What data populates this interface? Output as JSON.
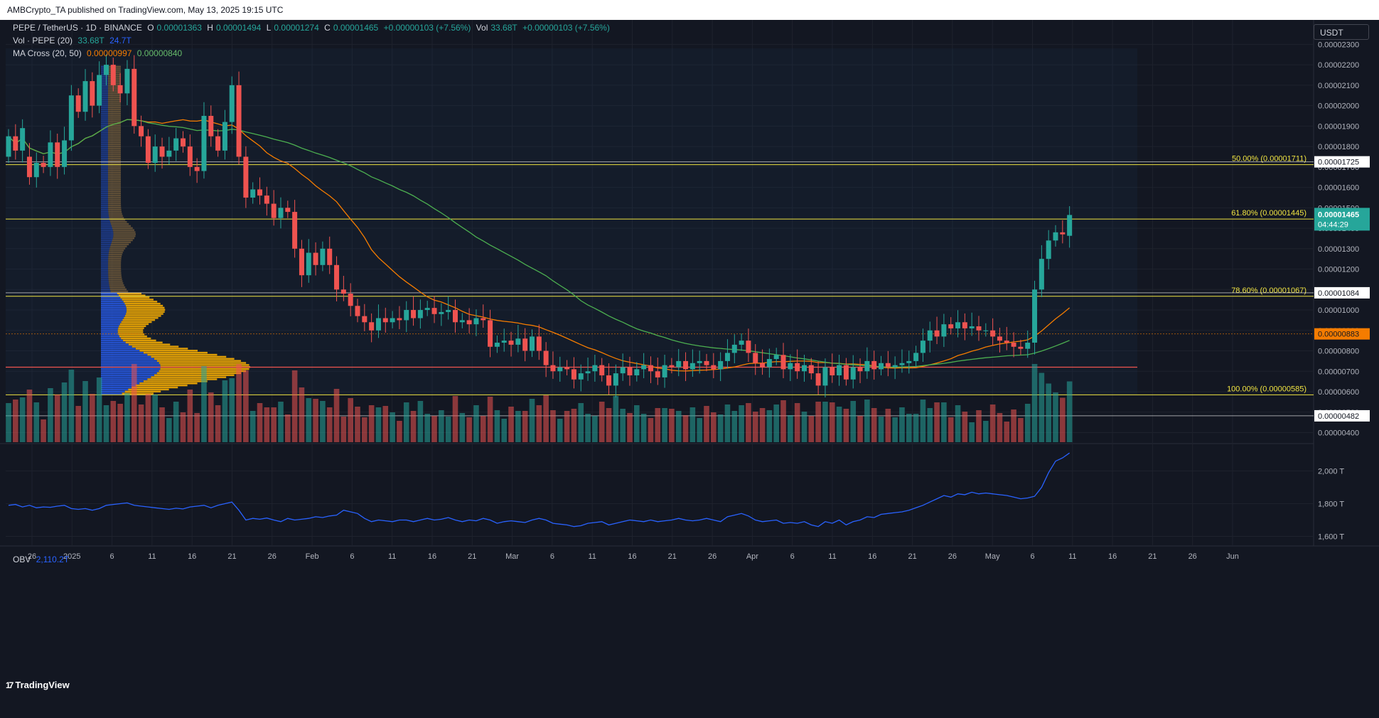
{
  "header": {
    "publisher_line": "AMBCrypto_TA published on TradingView.com, May 13, 2025 19:15 UTC"
  },
  "legend": {
    "symbol": "PEPE / TetherUS · 1D · BINANCE",
    "ohlc": {
      "o_label": "O",
      "o": "0.00001363",
      "h_label": "H",
      "h": "0.00001494",
      "l_label": "L",
      "l": "0.00001274",
      "c_label": "C",
      "c": "0.00001465",
      "change": "+0.00000103 (+7.56%)",
      "vol_label": "Vol",
      "vol": "33.68T",
      "vol_change": "+0.00000103 (+7.56%)"
    },
    "volume": {
      "label": "Vol · PEPE (20)",
      "v1": "33.68T",
      "v2": "24.7T"
    },
    "ma_cross": {
      "label": "MA Cross (20, 50)",
      "v1": "0.00000997",
      "v2": "0.00000840"
    },
    "obv": {
      "label": "OBV",
      "value": "2,110.2T"
    }
  },
  "currency_button": "USDT",
  "branding": {
    "logo_text": "TradingView",
    "logo_mark": "17"
  },
  "colors": {
    "background": "#131722",
    "up": "#26a69a",
    "down": "#ef5350",
    "fib_line": "#f0e442",
    "ma20": "#f57c00",
    "ma50": "#4caf50",
    "obv": "#2962ff",
    "grid": "#1e222d"
  },
  "chart_data": {
    "type": "candlestick",
    "timeframe": "1D",
    "price_ylim": [
      3.6e-06,
      2.35e-05
    ],
    "price_ticks": [
      "0.00000400",
      "0.00000500",
      "0.00000600",
      "0.00000700",
      "0.00000800",
      "0.00000900",
      "0.00001000",
      "0.00001100",
      "0.00001200",
      "0.00001300",
      "0.00001400",
      "0.00001500",
      "0.00001600",
      "0.00001700",
      "0.00001800",
      "0.00001900",
      "0.00002000",
      "0.00002100",
      "0.00002200",
      "0.00002300"
    ],
    "x_tick_labels": [
      "26",
      "2025",
      "6",
      "11",
      "16",
      "21",
      "26",
      "Feb",
      "6",
      "11",
      "16",
      "21",
      "Mar",
      "6",
      "11",
      "16",
      "21",
      "26",
      "Apr",
      "6",
      "11",
      "16",
      "21",
      "26",
      "May",
      "6",
      "11",
      "16",
      "21",
      "26",
      "Jun"
    ],
    "fib_levels": [
      {
        "label": "50.00% (0.00001711)",
        "price": 1.711e-05
      },
      {
        "label": "61.80% (0.00001445)",
        "price": 1.445e-05
      },
      {
        "label": "78.60% (0.00001067)",
        "price": 1.067e-05
      },
      {
        "label": "100.00% (0.00000585)",
        "price": 5.85e-06
      }
    ],
    "horizontal_levels": [
      {
        "price": 1.725e-05,
        "tag": "0.00001725",
        "color": "#ffffff"
      },
      {
        "price": 1.084e-05,
        "tag": "0.00001084",
        "color": "#ffffff"
      },
      {
        "price": 8.83e-06,
        "tag": "0.00000883",
        "color": "#f57c00"
      },
      {
        "price": 4.82e-06,
        "tag": "0.00000482",
        "color": "#ffffff"
      }
    ],
    "last_price_tag": {
      "price": "0.00001465",
      "countdown": "04:44:29"
    },
    "poc_price": 7.2e-06,
    "closes": [
      18.5,
      17.8,
      18.9,
      16.5,
      17.2,
      17.0,
      18.2,
      17.0,
      18.3,
      20.5,
      19.7,
      21.2,
      20.0,
      21.5,
      22.0,
      21.0,
      20.6,
      21.8,
      19.0,
      18.5,
      17.2,
      18.0,
      17.5,
      17.8,
      18.4,
      18.0,
      17.0,
      16.8,
      19.5,
      18.5,
      17.8,
      19.2,
      21.0,
      17.5,
      15.5,
      15.9,
      15.6,
      15.2,
      14.5,
      15.0,
      14.8,
      13.0,
      11.7,
      12.8,
      12.2,
      13.0,
      12.2,
      11.0,
      10.8,
      10.2,
      9.7,
      9.4,
      9.0,
      9.6,
      9.4,
      9.6,
      9.5,
      10.0,
      9.6,
      10.0,
      10.1,
      9.8,
      9.9,
      10.0,
      9.4,
      9.5,
      9.3,
      9.6,
      9.5,
      8.2,
      8.4,
      8.5,
      8.3,
      8.6,
      8.0,
      8.7,
      8.0,
      7.3,
      7.0,
      7.2,
      7.1,
      6.6,
      6.9,
      7.0,
      7.3,
      6.8,
      6.3,
      6.9,
      7.2,
      6.8,
      7.1,
      7.3,
      7.0,
      6.7,
      7.3,
      7.2,
      7.5,
      7.1,
      7.4,
      7.5,
      7.3,
      7.1,
      7.5,
      7.9,
      8.3,
      8.5,
      7.9,
      7.4,
      7.2,
      7.6,
      7.8,
      7.1,
      7.4,
      7.0,
      7.3,
      6.9,
      6.3,
      7.2,
      6.8,
      7.3,
      6.6,
      7.2,
      7.0,
      7.5,
      7.1,
      7.4,
      7.2,
      7.3,
      7.4,
      7.5,
      7.9,
      8.5,
      9.0,
      8.7,
      9.3,
      9.1,
      9.4,
      9.1,
      9.2,
      9.0,
      9.0,
      8.7,
      8.5,
      8.4,
      8.2,
      8.1,
      8.4,
      11.0,
      12.5,
      13.4,
      13.8,
      13.7,
      14.65
    ],
    "opens": [
      17.5,
      18.5,
      17.8,
      17.5,
      16.5,
      17.2,
      17.0,
      18.2,
      17.0,
      18.3,
      20.5,
      19.7,
      21.2,
      20.0,
      21.5,
      22.0,
      21.0,
      20.6,
      21.8,
      19.0,
      18.5,
      17.2,
      18.0,
      17.5,
      17.8,
      18.4,
      18.0,
      17.0,
      16.8,
      19.5,
      18.5,
      17.8,
      19.2,
      21.0,
      17.5,
      15.5,
      15.9,
      15.6,
      15.2,
      14.5,
      15.0,
      14.8,
      13.0,
      11.7,
      12.8,
      12.2,
      13.0,
      12.2,
      11.0,
      10.8,
      10.2,
      9.7,
      9.4,
      9.0,
      9.6,
      9.4,
      9.6,
      9.5,
      10.0,
      9.6,
      10.0,
      10.1,
      9.8,
      9.9,
      10.0,
      9.4,
      9.5,
      9.3,
      9.6,
      9.5,
      8.2,
      8.4,
      8.5,
      8.3,
      8.6,
      8.0,
      8.7,
      8.0,
      7.3,
      7.0,
      7.2,
      7.1,
      6.6,
      6.9,
      7.0,
      7.3,
      6.8,
      6.3,
      6.9,
      7.2,
      6.8,
      7.1,
      7.3,
      7.0,
      6.7,
      7.3,
      7.2,
      7.5,
      7.1,
      7.4,
      7.5,
      7.3,
      7.1,
      7.5,
      7.9,
      8.3,
      8.5,
      7.9,
      7.4,
      7.2,
      7.6,
      7.8,
      7.1,
      7.4,
      7.0,
      7.3,
      6.9,
      6.3,
      7.2,
      6.8,
      7.3,
      6.6,
      7.2,
      7.0,
      7.5,
      7.1,
      7.4,
      7.2,
      7.3,
      7.4,
      7.5,
      7.9,
      8.5,
      9.0,
      8.7,
      9.3,
      9.1,
      9.4,
      9.1,
      9.2,
      9.0,
      9.0,
      8.7,
      8.5,
      8.4,
      8.2,
      8.1,
      8.4,
      11.0,
      12.5,
      13.4,
      13.8,
      13.63
    ],
    "price_unit_note": "values x 1e-6 USDT",
    "obv_ylim": [
      1550,
      2150
    ],
    "obv_ticks": [
      "1,600 T",
      "1,800 T",
      "2,000 T"
    ],
    "obv_values": [
      1790,
      1795,
      1780,
      1790,
      1775,
      1780,
      1778,
      1785,
      1790,
      1770,
      1765,
      1770,
      1760,
      1770,
      1790,
      1795,
      1800,
      1805,
      1790,
      1785,
      1780,
      1775,
      1770,
      1765,
      1772,
      1768,
      1780,
      1785,
      1790,
      1775,
      1790,
      1800,
      1810,
      1760,
      1700,
      1710,
      1705,
      1712,
      1700,
      1690,
      1710,
      1700,
      1705,
      1710,
      1720,
      1715,
      1725,
      1730,
      1760,
      1750,
      1740,
      1710,
      1690,
      1700,
      1695,
      1690,
      1700,
      1700,
      1690,
      1700,
      1710,
      1700,
      1705,
      1715,
      1700,
      1690,
      1700,
      1695,
      1710,
      1700,
      1680,
      1690,
      1695,
      1690,
      1685,
      1700,
      1710,
      1700,
      1680,
      1675,
      1670,
      1660,
      1665,
      1680,
      1685,
      1690,
      1670,
      1680,
      1690,
      1700,
      1695,
      1690,
      1700,
      1690,
      1695,
      1700,
      1710,
      1700,
      1695,
      1700,
      1710,
      1700,
      1690,
      1720,
      1730,
      1740,
      1725,
      1700,
      1690,
      1695,
      1700,
      1680,
      1685,
      1680,
      1690,
      1670,
      1660,
      1690,
      1680,
      1700,
      1670,
      1690,
      1700,
      1720,
      1715,
      1735,
      1740,
      1745,
      1750,
      1760,
      1775,
      1790,
      1810,
      1830,
      1850,
      1840,
      1860,
      1855,
      1870,
      1860,
      1865,
      1860,
      1855,
      1850,
      1840,
      1830,
      1835,
      1845,
      1900,
      1990,
      2060,
      2080,
      2110
    ]
  }
}
